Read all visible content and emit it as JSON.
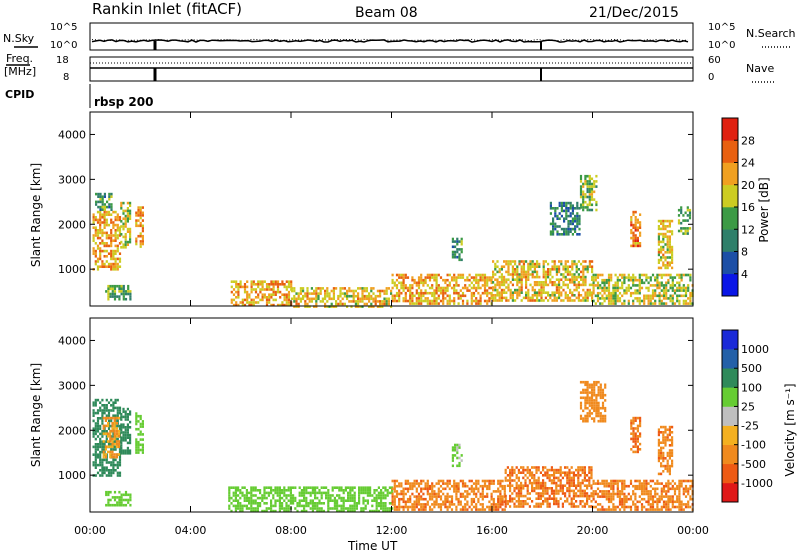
{
  "header": {
    "site": "Rankin Inlet (fitACF)",
    "beam": "Beam 08",
    "date": "21/Dec/2015"
  },
  "status_panels": {
    "nsky_label": "N.Sky",
    "nsearch_label": "N.Search",
    "noise_ticks": [
      "10^5",
      "10^0"
    ],
    "freq_label_top": "Freq.",
    "freq_label_bottom": "[MHz]",
    "freq_ticks_left": [
      "18",
      "8"
    ],
    "freq_ticks_right": [
      "60",
      "0"
    ],
    "nave_label": "Nave",
    "cpid_label": "CPID",
    "cpid_name": "rbsp 200"
  },
  "axes": {
    "time_label": "Time UT",
    "time_ticks": [
      "00:00",
      "04:00",
      "08:00",
      "12:00",
      "16:00",
      "20:00",
      "00:00"
    ],
    "range_label": "Slant Range [km]",
    "range_ticks": [
      1000,
      2000,
      3000,
      4000
    ],
    "range_lim": [
      180,
      4500
    ],
    "time_lim_hours": [
      0,
      24
    ]
  },
  "power_colorbar": {
    "label": "Power [dB]",
    "ticks": [
      "4",
      "8",
      "12",
      "16",
      "20",
      "24",
      "28"
    ],
    "colors": [
      "#0a16e6",
      "#1c4fa6",
      "#2f7f6a",
      "#3c9a45",
      "#cccc22",
      "#f0a020",
      "#e86010",
      "#e02010"
    ]
  },
  "velocity_colorbar": {
    "label": "Velocity [m s⁻¹]",
    "ticks": [
      "-1000",
      "-500",
      "-100",
      "-25",
      "25",
      "100",
      "500",
      "1000"
    ],
    "colors": [
      "#e01818",
      "#ee5a14",
      "#f08a1e",
      "#f4b020",
      "#bfbfbf",
      "#66cc33",
      "#2f8a5a",
      "#2460a8",
      "#1a2ad8"
    ]
  },
  "chart_data": [
    {
      "type": "heatmap",
      "title": "Power",
      "xlabel": "Time UT",
      "ylabel": "Slant Range [km]",
      "xlim": [
        0,
        24
      ],
      "ylim": [
        180,
        4500
      ],
      "colorbar_label": "Power [dB]",
      "regions": [
        {
          "t0": 0.1,
          "t1": 1.2,
          "r0": 1000,
          "r1": 2300,
          "value": 22
        },
        {
          "t0": 0.2,
          "t1": 0.9,
          "r0": 2300,
          "r1": 2700,
          "value": 12
        },
        {
          "t0": 1.2,
          "t1": 1.6,
          "r0": 1500,
          "r1": 2500,
          "value": 18
        },
        {
          "t0": 1.8,
          "t1": 2.1,
          "r0": 1500,
          "r1": 2400,
          "value": 22
        },
        {
          "t0": 0.6,
          "t1": 1.6,
          "r0": 350,
          "r1": 650,
          "value": 14
        },
        {
          "t0": 5.6,
          "t1": 8.0,
          "r0": 180,
          "r1": 750,
          "value": 22
        },
        {
          "t0": 8.0,
          "t1": 12.0,
          "r0": 180,
          "r1": 600,
          "value": 20
        },
        {
          "t0": 12.0,
          "t1": 16.0,
          "r0": 250,
          "r1": 900,
          "value": 22
        },
        {
          "t0": 16.0,
          "t1": 20.0,
          "r0": 300,
          "r1": 1200,
          "value": 20
        },
        {
          "t0": 20.0,
          "t1": 24.0,
          "r0": 250,
          "r1": 900,
          "value": 18
        },
        {
          "t0": 18.3,
          "t1": 19.5,
          "r0": 1800,
          "r1": 2500,
          "value": 10
        },
        {
          "t0": 19.5,
          "t1": 20.2,
          "r0": 2300,
          "r1": 3100,
          "value": 16
        },
        {
          "t0": 21.5,
          "t1": 21.9,
          "r0": 1500,
          "r1": 2300,
          "value": 24
        },
        {
          "t0": 22.6,
          "t1": 23.2,
          "r0": 1000,
          "r1": 2100,
          "value": 20
        },
        {
          "t0": 23.4,
          "t1": 23.9,
          "r0": 1800,
          "r1": 2400,
          "value": 14
        },
        {
          "t0": 14.4,
          "t1": 14.8,
          "r0": 1200,
          "r1": 1700,
          "value": 12
        }
      ]
    },
    {
      "type": "heatmap",
      "title": "Velocity",
      "xlabel": "Time UT",
      "ylabel": "Slant Range [km]",
      "xlim": [
        0,
        24
      ],
      "ylim": [
        180,
        4500
      ],
      "colorbar_label": "Velocity [m s⁻¹]",
      "regions": [
        {
          "t0": 0.1,
          "t1": 1.2,
          "r0": 1000,
          "r1": 2700,
          "value": 300
        },
        {
          "t0": 0.5,
          "t1": 1.2,
          "r0": 1400,
          "r1": 2300,
          "value": -100
        },
        {
          "t0": 1.2,
          "t1": 1.6,
          "r0": 1500,
          "r1": 2500,
          "value": 200
        },
        {
          "t0": 1.8,
          "t1": 2.1,
          "r0": 1500,
          "r1": 2400,
          "value": 60
        },
        {
          "t0": 0.6,
          "t1": 1.6,
          "r0": 350,
          "r1": 650,
          "value": 60
        },
        {
          "t0": 5.5,
          "t1": 12.0,
          "r0": 180,
          "r1": 750,
          "value": 60
        },
        {
          "t0": 12.0,
          "t1": 16.5,
          "r0": 250,
          "r1": 900,
          "value": -400
        },
        {
          "t0": 16.5,
          "t1": 20.0,
          "r0": 300,
          "r1": 1200,
          "value": -450
        },
        {
          "t0": 20.0,
          "t1": 24.0,
          "r0": 250,
          "r1": 900,
          "value": -400
        },
        {
          "t0": 19.5,
          "t1": 20.5,
          "r0": 2200,
          "r1": 3100,
          "value": -300
        },
        {
          "t0": 21.5,
          "t1": 21.9,
          "r0": 1500,
          "r1": 2300,
          "value": -500
        },
        {
          "t0": 22.6,
          "t1": 23.2,
          "r0": 1000,
          "r1": 2100,
          "value": -400
        },
        {
          "t0": 14.4,
          "t1": 14.8,
          "r0": 1200,
          "r1": 1700,
          "value": 40
        }
      ]
    }
  ]
}
